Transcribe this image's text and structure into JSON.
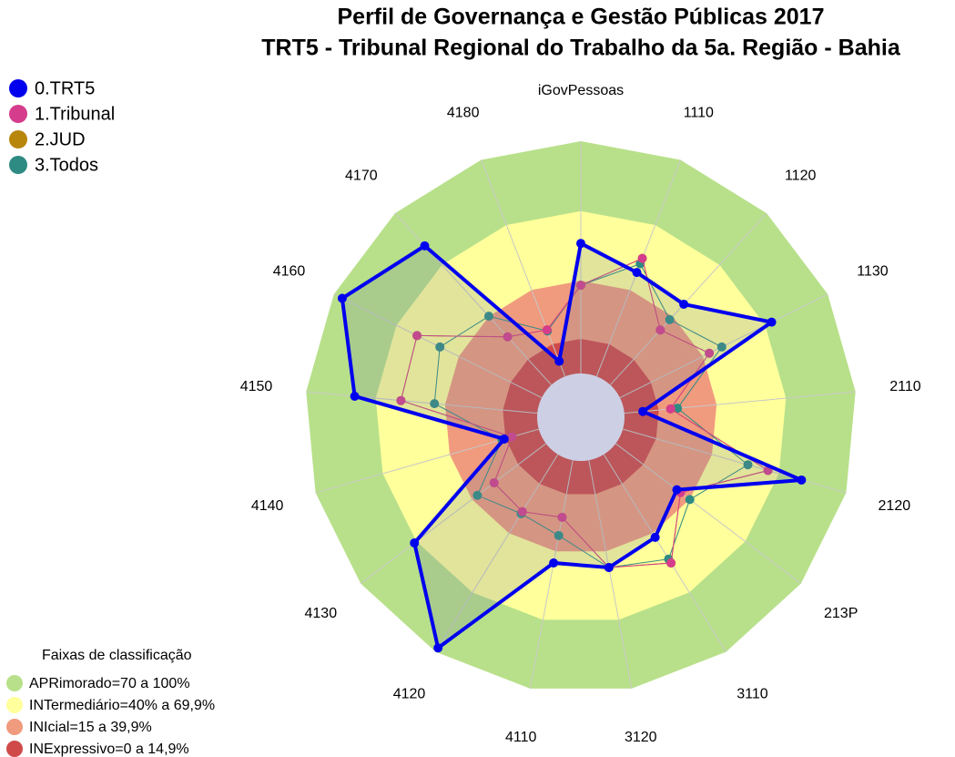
{
  "chart_data": {
    "type": "radar",
    "title": "Perfil de Governança e Gestão Públicas 2017",
    "subtitle": "TRT5 - Tribunal Regional do Trabalho da 5a. Região - Bahia",
    "categories": [
      "iGovPessoas",
      "1110",
      "1120",
      "1130",
      "2110",
      "2120",
      "213P",
      "3110",
      "3120",
      "4110",
      "4120",
      "4130",
      "4140",
      "4150",
      "4160",
      "4170",
      "4180"
    ],
    "rlim": [
      0,
      100
    ],
    "series": [
      {
        "name": "0.TRT5",
        "color": "#0000ee",
        "values": [
          56,
          48,
          47,
          73,
          8,
          80,
          33,
          42,
          47,
          45,
          98,
          71,
          15.5,
          79,
          96,
          81,
          7
        ]
      },
      {
        "name": "1.Tribunal",
        "color": "#d63c8c",
        "values": [
          38,
          54.5,
          32,
          43,
          20,
          65,
          35,
          55,
          47,
          25,
          29,
          28,
          12,
          59,
          60,
          28,
          21.5
        ]
      },
      {
        "name": "2.JUD",
        "color": "#b8860b",
        "values": [
          38,
          54.5,
          32,
          43,
          20,
          65,
          35,
          55,
          47,
          25,
          29,
          28,
          12,
          59,
          60,
          28,
          21.5
        ]
      },
      {
        "name": "3.Todos",
        "color": "#2e8b84",
        "values": [
          38,
          52,
          38,
          49,
          23,
          56,
          40,
          53,
          47,
          33,
          30,
          37,
          16.5,
          44.5,
          49,
          40,
          21
        ]
      }
    ],
    "bands_title": "Faixas de classificação",
    "bands": [
      {
        "label": "APRimorado=70 a 100%",
        "range": [
          70,
          100
        ],
        "color": "#b8e08a"
      },
      {
        "label": "INTermediário=40% a 69,9%",
        "range": [
          40,
          69.9
        ],
        "color": "#ffff9c"
      },
      {
        "label": "INIcial=15 a 39,9%",
        "range": [
          15,
          39.9
        ],
        "color": "#f09a7e"
      },
      {
        "label": "INExpressivo=0 a 14,9%",
        "range": [
          0,
          14.9
        ],
        "color": "#d04a4a"
      }
    ]
  }
}
